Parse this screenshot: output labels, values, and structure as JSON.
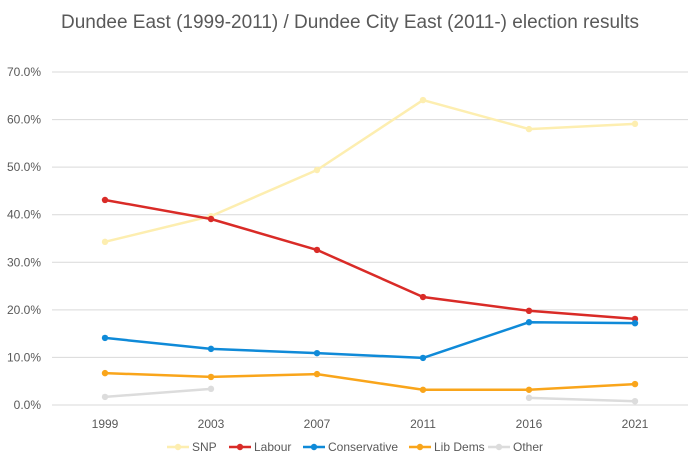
{
  "chart_data": {
    "type": "line",
    "title": "Dundee East (1999-2011) / Dundee City East (2011-) election results",
    "categories": [
      "1999",
      "2003",
      "2007",
      "2011",
      "2016",
      "2021"
    ],
    "ylim": [
      0,
      70
    ],
    "yticks": [
      "0.0%",
      "10.0%",
      "20.0%",
      "30.0%",
      "40.0%",
      "50.0%",
      "60.0%",
      "70.0%"
    ],
    "grid": true,
    "legend": "bottom",
    "series": [
      {
        "name": "SNP",
        "color": "#fdeeb0",
        "values": [
          34.3,
          39.7,
          49.4,
          64.1,
          58.0,
          59.1
        ]
      },
      {
        "name": "Labour",
        "color": "#d92b27",
        "values": [
          43.1,
          39.1,
          32.6,
          22.7,
          19.8,
          18.1
        ]
      },
      {
        "name": "Conservative",
        "color": "#0f8ad8",
        "values": [
          14.1,
          11.8,
          10.9,
          9.9,
          17.4,
          17.2
        ]
      },
      {
        "name": "Lib Dems",
        "color": "#f9a51b",
        "values": [
          6.7,
          5.9,
          6.5,
          3.2,
          3.2,
          4.4
        ]
      },
      {
        "name": "Other",
        "color": "#dcdcdc",
        "values": [
          1.7,
          3.4,
          null,
          null,
          1.5,
          0.8
        ]
      }
    ]
  }
}
